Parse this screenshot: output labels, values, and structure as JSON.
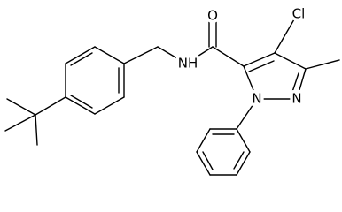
{
  "labels": {
    "oxygen": "O",
    "chlorine": "Cl",
    "amide_nitrogen": "NH",
    "n1": "N",
    "n2": "N"
  }
}
